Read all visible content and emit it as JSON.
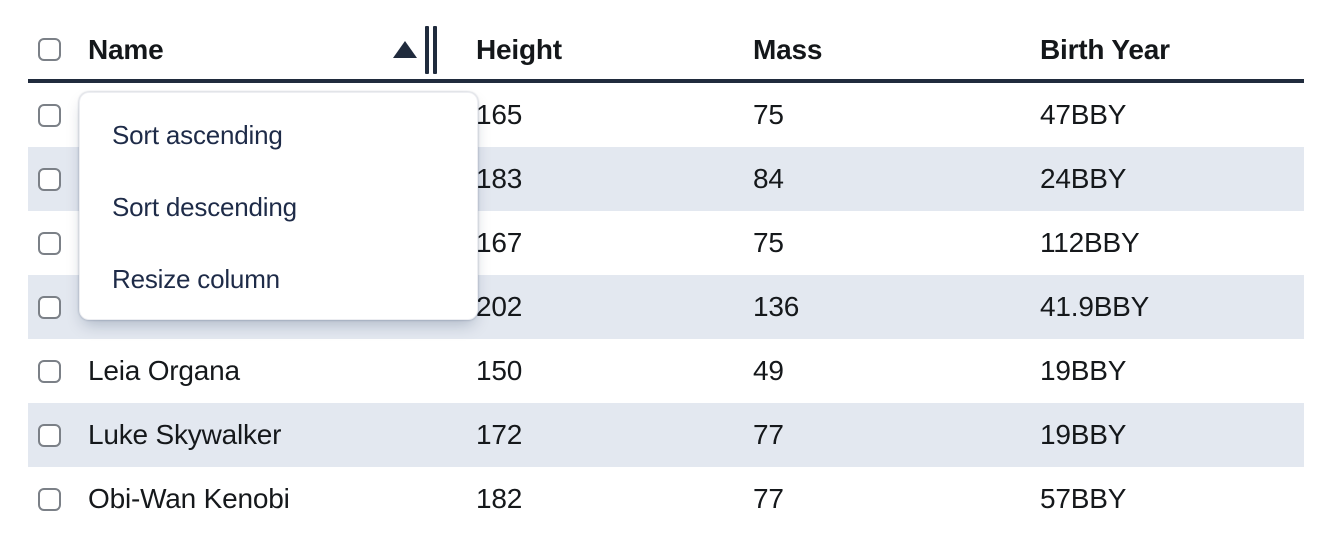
{
  "table": {
    "columns": {
      "select": "",
      "name": "Name",
      "height": "Height",
      "mass": "Mass",
      "birth_year": "Birth Year"
    },
    "sort": {
      "column": "Name",
      "direction": "ascending"
    },
    "rows": [
      {
        "name": "",
        "height": "165",
        "mass": "75",
        "birth_year": "47BBY"
      },
      {
        "name": "",
        "height": "183",
        "mass": "84",
        "birth_year": "24BBY"
      },
      {
        "name": "",
        "height": "167",
        "mass": "75",
        "birth_year": "112BBY"
      },
      {
        "name": "",
        "height": "202",
        "mass": "136",
        "birth_year": "41.9BBY"
      },
      {
        "name": "Leia Organa",
        "height": "150",
        "mass": "49",
        "birth_year": "19BBY"
      },
      {
        "name": "Luke Skywalker",
        "height": "172",
        "mass": "77",
        "birth_year": "19BBY"
      },
      {
        "name": "Obi-Wan Kenobi",
        "height": "182",
        "mass": "77",
        "birth_year": "57BBY"
      }
    ],
    "striped_row_numbers": [
      2,
      4,
      6
    ],
    "checkboxes_checked": false
  },
  "context_menu": {
    "items": [
      "Sort ascending",
      "Sort descending",
      "Resize column"
    ]
  },
  "icons": {
    "sort_ascending_icon": "filled-up-triangle",
    "column_resize_icon": "double-vertical-bars",
    "checkbox_icon": "empty-rounded-square"
  },
  "colors": {
    "header_border": "#202b3d",
    "row_stripe": "#e3e8f0",
    "header_text": "#14171a",
    "body_text": "#15181b",
    "menu_text": "#1e2b48",
    "checkbox_border": "#7b8087",
    "menu_background": "#ffffff"
  }
}
